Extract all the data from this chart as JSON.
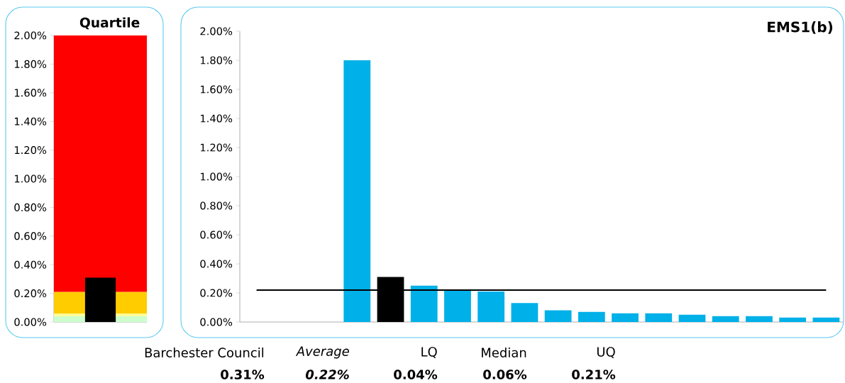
{
  "chart_data": [
    {
      "type": "bar",
      "title": "Quartile",
      "categories": [
        null
      ],
      "values": [
        0.31
      ],
      "color": "#000000",
      "ylim": [
        0,
        2
      ],
      "tick_labels": "y",
      "yticks": [
        {
          "value": 0,
          "label": "0.00%"
        },
        {
          "value": 0.2,
          "label": "0.20%"
        },
        {
          "value": 0.4,
          "label": "0.40%"
        },
        {
          "value": 0.6,
          "label": "0.60%"
        },
        {
          "value": 0.8,
          "label": "0.80%"
        },
        {
          "value": 1.0,
          "label": "1.00%"
        },
        {
          "value": 1.2,
          "label": "1.20%"
        },
        {
          "value": 1.4,
          "label": "1.40%"
        },
        {
          "value": 1.6,
          "label": "1.60%"
        },
        {
          "value": 1.8,
          "label": "1.80%"
        },
        {
          "value": 2.0,
          "label": "2.00%"
        }
      ],
      "bands": [
        {
          "axis": "y",
          "from": 0,
          "to": 0.04,
          "color": "#ccffcc"
        },
        {
          "axis": "y",
          "from": 0.04,
          "to": 0.06,
          "color": "#ffff99"
        },
        {
          "axis": "y",
          "from": 0.06,
          "to": 0.21,
          "color": "#ffcc00"
        },
        {
          "axis": "y",
          "from": 0.21,
          "to": 2.0,
          "color": "#ff0000"
        }
      ]
    },
    {
      "type": "bar",
      "title": "EMS1(b)",
      "categories": [
        null,
        null,
        null,
        null,
        null,
        null,
        null,
        null,
        null,
        null,
        null,
        null,
        null,
        null,
        null,
        null,
        null,
        null
      ],
      "values": [
        null,
        null,
        null,
        1.8,
        0.31,
        0.25,
        0.22,
        0.21,
        0.13,
        0.08,
        0.07,
        0.06,
        0.06,
        0.05,
        0.04,
        0.04,
        0.03,
        0.03
      ],
      "colors": [
        "#00b0e8",
        "#00b0e8",
        "#00b0e8",
        "#00b0e8",
        "#000000",
        "#00b0e8",
        "#00b0e8",
        "#00b0e8",
        "#00b0e8",
        "#00b0e8",
        "#00b0e8",
        "#00b0e8",
        "#00b0e8",
        "#00b0e8",
        "#00b0e8",
        "#00b0e8",
        "#00b0e8",
        "#00b0e8"
      ],
      "ylim": [
        0,
        2
      ],
      "tick_labels": "y",
      "yticks": [
        {
          "value": 0,
          "label": "0.00%"
        },
        {
          "value": 0.2,
          "label": "0.20%"
        },
        {
          "value": 0.4,
          "label": "0.40%"
        },
        {
          "value": 0.6,
          "label": "0.60%"
        },
        {
          "value": 0.8,
          "label": "0.80%"
        },
        {
          "value": 1.0,
          "label": "1.00%"
        },
        {
          "value": 1.2,
          "label": "1.20%"
        },
        {
          "value": 1.4,
          "label": "1.40%"
        },
        {
          "value": 1.6,
          "label": "1.60%"
        },
        {
          "value": 1.8,
          "label": "1.80%"
        },
        {
          "value": 2.0,
          "label": "2.00%"
        }
      ],
      "ref_lines": [
        {
          "axis": "y",
          "value": 0.22,
          "color": "#000000"
        }
      ],
      "annotations": [
        "Barchester Council",
        "Average",
        "LQ",
        "Median",
        "UQ",
        "0.31%",
        "0.22%",
        "0.04%",
        "0.06%",
        "0.21%"
      ]
    }
  ]
}
